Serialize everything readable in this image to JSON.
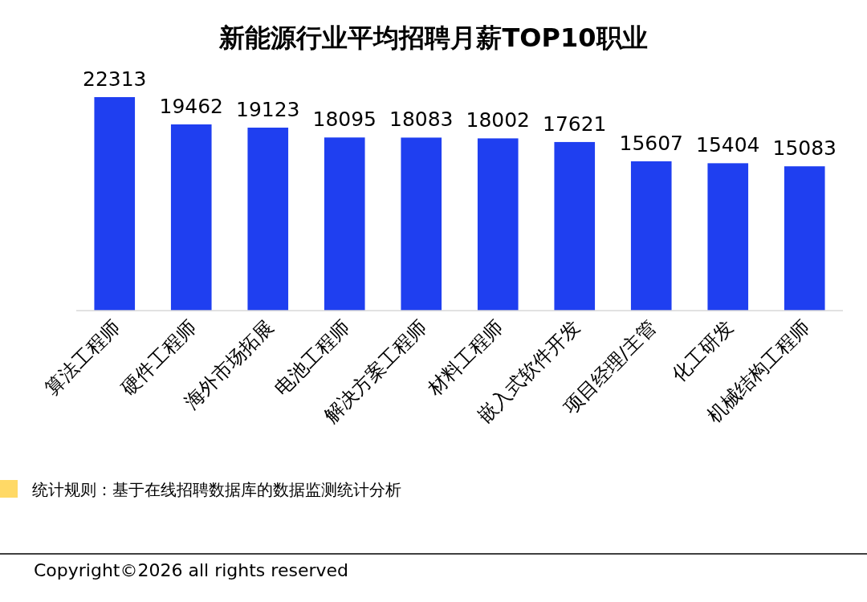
{
  "chart_data": {
    "type": "bar",
    "title": "新能源行业平均招聘月薪TOP10职业",
    "categories": [
      "算法工程师",
      "硬件工程师",
      "海外市场拓展",
      "电池工程师",
      "解决方案工程师",
      "材料工程师",
      "嵌入式软件开发",
      "项目经理/主管",
      "化工研发",
      "机械结构工程师"
    ],
    "values": [
      22313,
      19462,
      19123,
      18095,
      18083,
      18002,
      17621,
      15607,
      15404,
      15083
    ],
    "color": "#1f3ff0",
    "data_labels": true,
    "annotations": [
      "统计规则：基于在线招聘数据库的数据监测统计分析",
      "Copyright©2026 all rights reserved"
    ]
  }
}
